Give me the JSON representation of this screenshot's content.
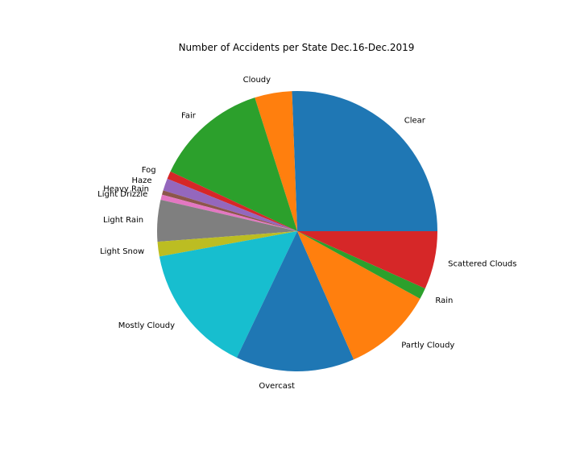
{
  "chart_data": {
    "type": "pie",
    "title": "Number of Accidents per State Dec.16-Dec.2019",
    "start_angle_deg": 0,
    "direction": "counterclockwise",
    "slices": [
      {
        "label": "Clear",
        "value": 25.6,
        "color": "#1f77b4"
      },
      {
        "label": "Cloudy",
        "value": 4.3,
        "color": "#ff7f0e"
      },
      {
        "label": "Fair",
        "value": 13.1,
        "color": "#2ca02c"
      },
      {
        "label": "Fog",
        "value": 0.9,
        "color": "#d62728"
      },
      {
        "label": "Haze",
        "value": 1.4,
        "color": "#9467bd"
      },
      {
        "label": "Heavy Rain",
        "value": 0.5,
        "color": "#8c564b"
      },
      {
        "label": "Light Drizzle",
        "value": 0.6,
        "color": "#e377c2"
      },
      {
        "label": "Light Rain",
        "value": 4.8,
        "color": "#7f7f7f"
      },
      {
        "label": "Light Snow",
        "value": 1.7,
        "color": "#bcbd22"
      },
      {
        "label": "Mostly Cloudy",
        "value": 15.0,
        "color": "#17becf"
      },
      {
        "label": "Overcast",
        "value": 13.7,
        "color": "#1f77b4"
      },
      {
        "label": "Partly Cloudy",
        "value": 10.4,
        "color": "#ff7f0e"
      },
      {
        "label": "Rain",
        "value": 1.3,
        "color": "#2ca02c"
      },
      {
        "label": "Scattered Clouds",
        "value": 6.7,
        "color": "#d62728"
      }
    ]
  }
}
